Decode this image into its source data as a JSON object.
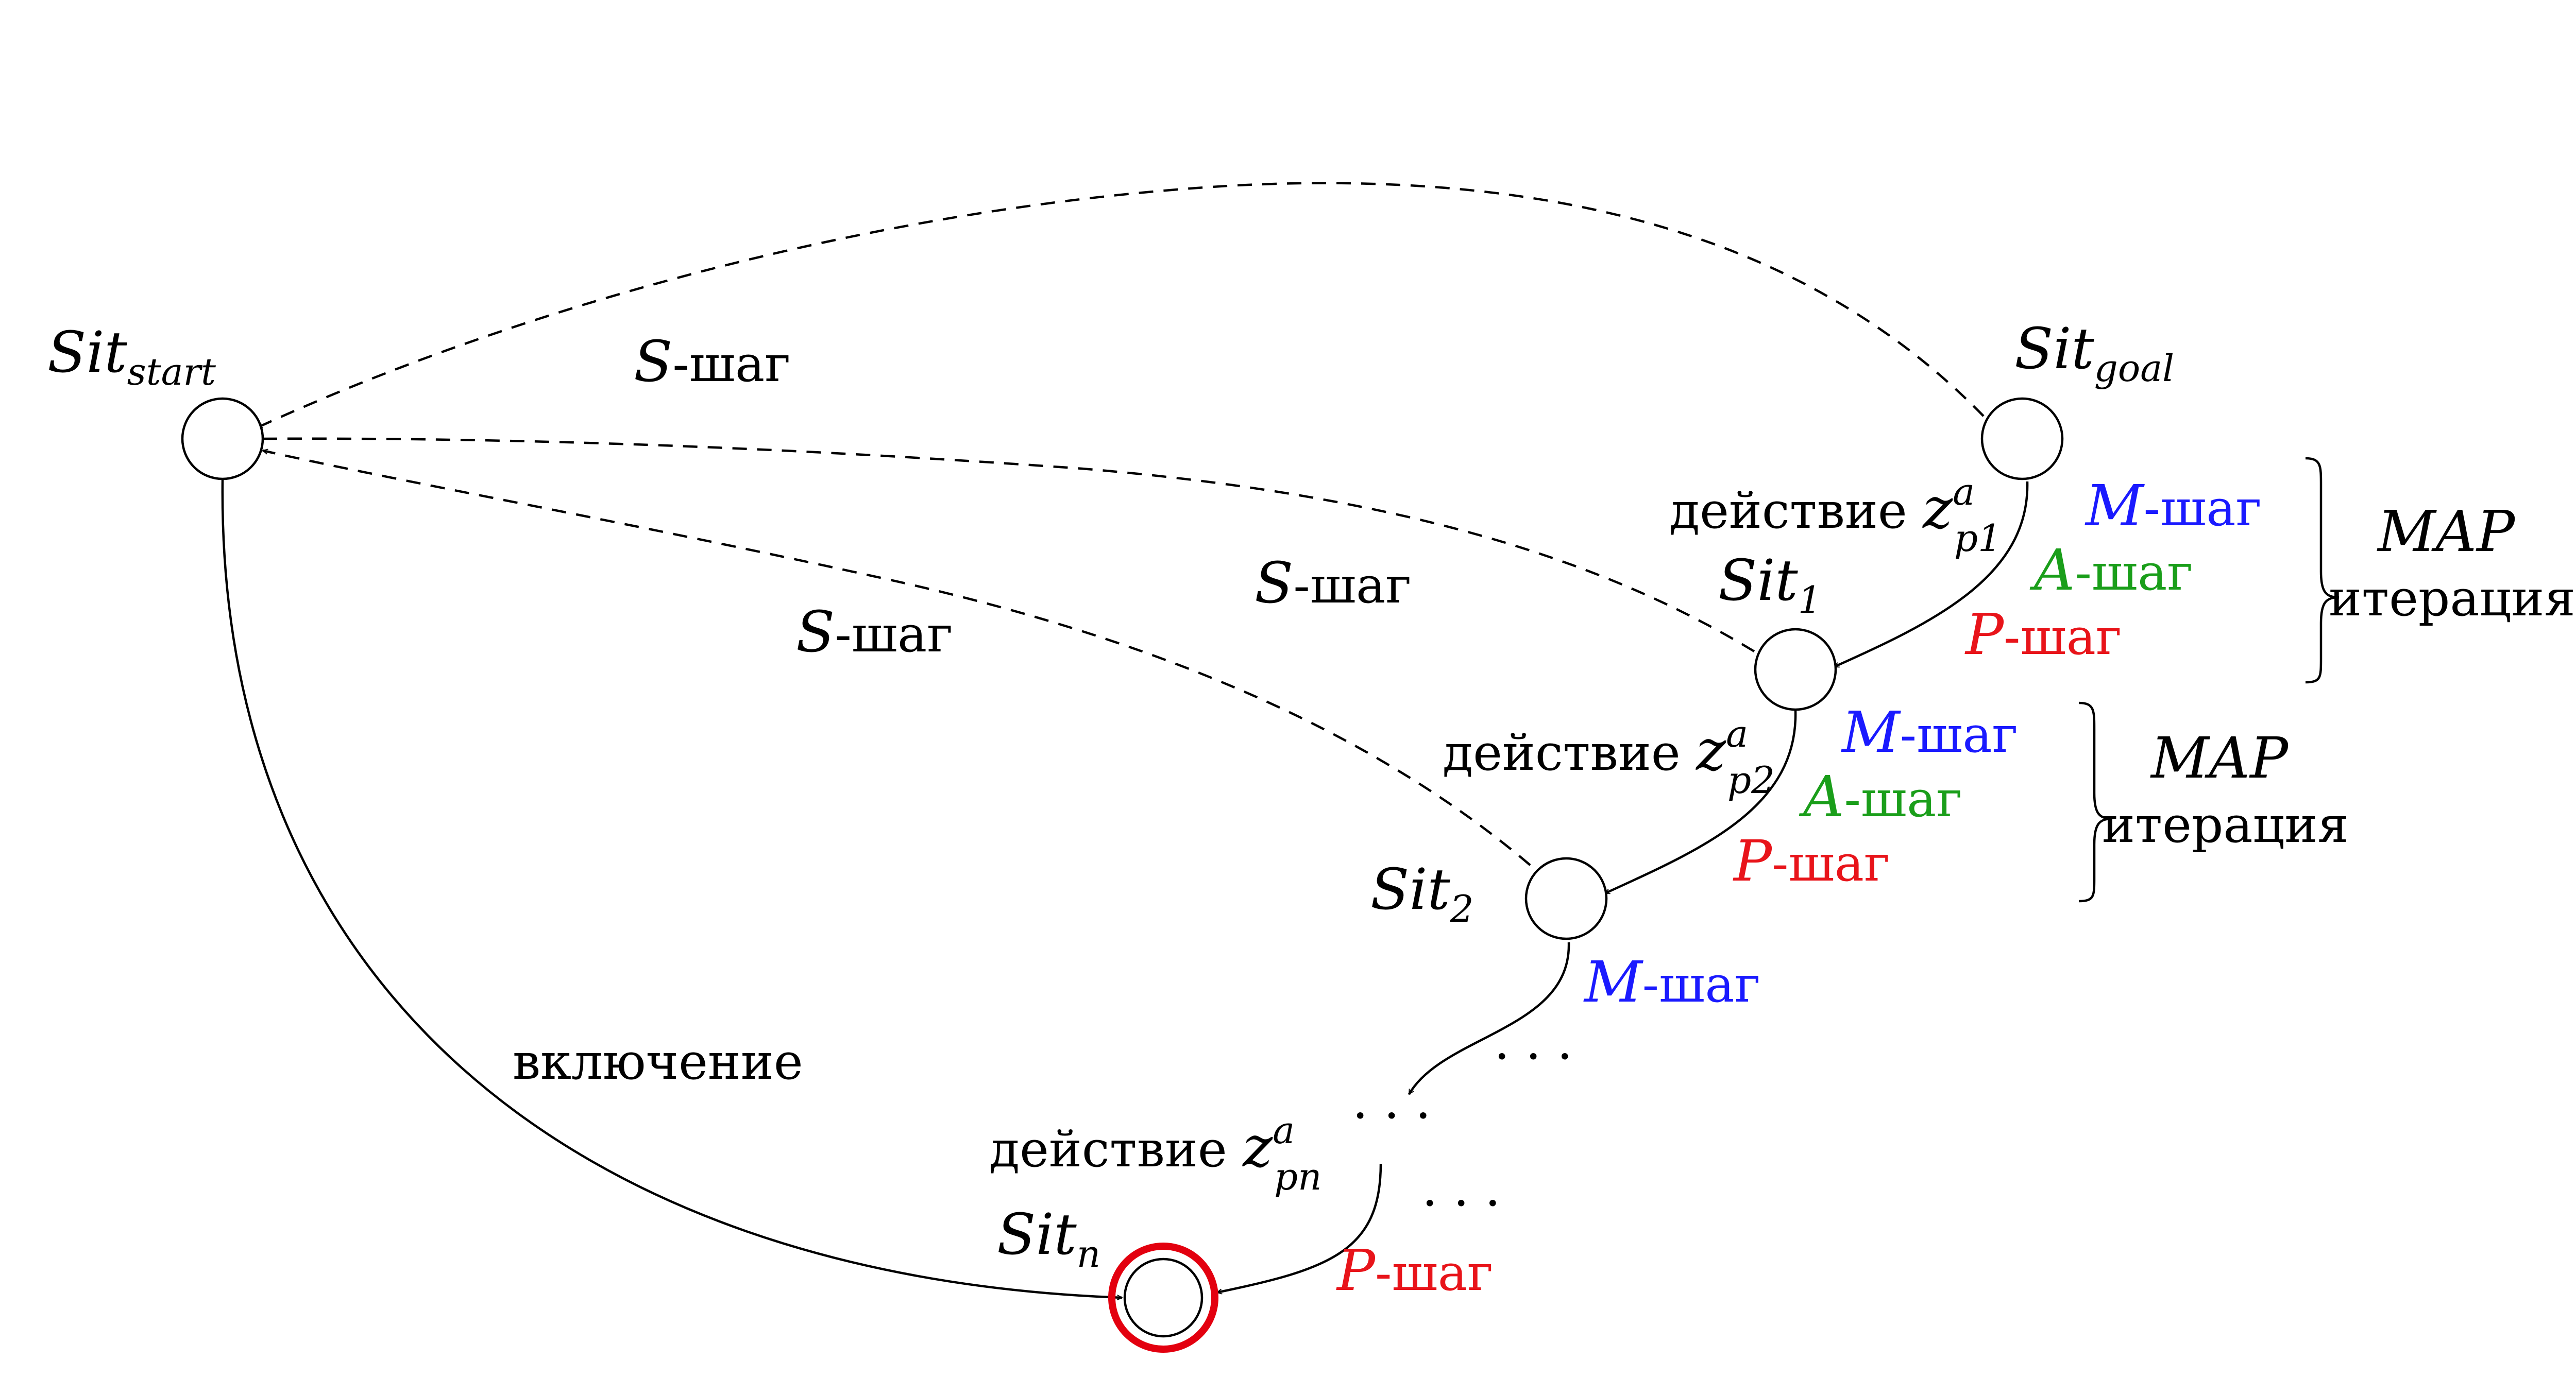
{
  "nodes": {
    "start": {
      "name": "Sit",
      "sub": "start"
    },
    "goal": {
      "name": "Sit",
      "sub": "goal"
    },
    "sit1": {
      "name": "Sit",
      "sub": "1"
    },
    "sit2": {
      "name": "Sit",
      "sub": "2"
    },
    "sitn": {
      "name": "Sit",
      "sub": "n"
    }
  },
  "edges": {
    "s_step_label": "-шаг",
    "s_letter": "S",
    "inclusion": "включение",
    "action": "действие",
    "z": "z",
    "z_sup": "a",
    "z_sub_1": "p1",
    "z_sub_2": "p2",
    "z_sub_n": "pn"
  },
  "steps": {
    "m_letter": "M",
    "a_letter": "A",
    "p_letter": "P",
    "suffix": "-шаг"
  },
  "iteration": {
    "title": "MAP",
    "label": "итерация"
  },
  "ellipsis": "· · ·",
  "colors": {
    "m_step": "#1a1aff",
    "a_step": "#1a9e1a",
    "p_step": "#e8141a",
    "goal_highlight": "#e3000f"
  }
}
